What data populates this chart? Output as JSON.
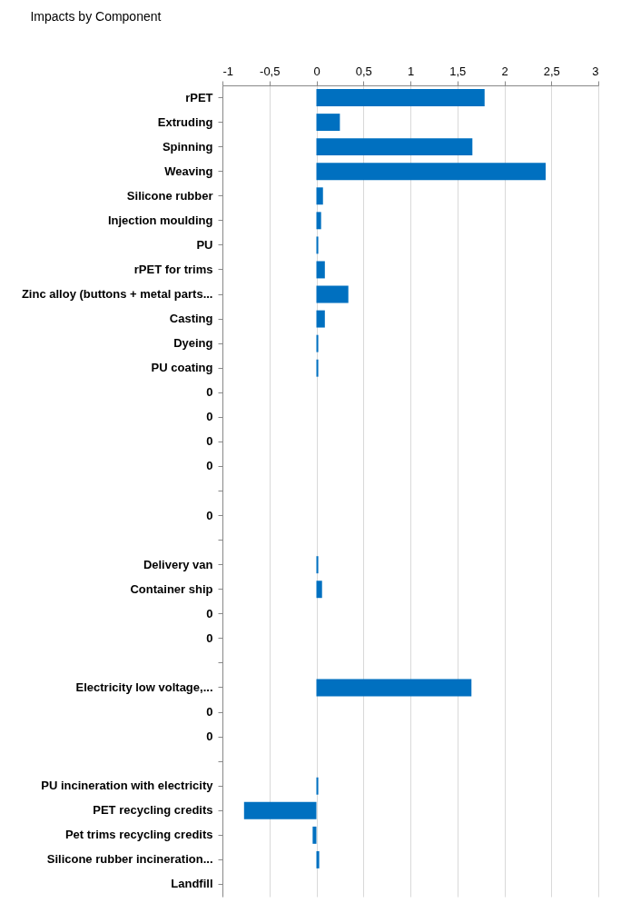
{
  "chart_data": {
    "type": "bar",
    "orientation": "horizontal",
    "title": "Impacts by Component",
    "categories": [
      "rPET",
      "Extruding",
      "Spinning",
      "Weaving",
      "Silicone rubber",
      "Injection moulding",
      "PU",
      "rPET for trims",
      "Zinc alloy (buttons + metal parts...",
      "Casting",
      "Dyeing",
      "PU coating",
      "0",
      "0",
      "0",
      "0",
      null,
      "0",
      null,
      "Delivery van",
      "Container ship",
      "0",
      "0",
      null,
      "Electricity low voltage,...",
      "0",
      "0",
      null,
      "PU incineration with electricity",
      "PET recycling credits",
      "Pet trims recycling credits",
      "Silicone rubber incineration...",
      "Landfill"
    ],
    "values": [
      1.79,
      0.25,
      1.66,
      2.44,
      0.07,
      0.05,
      0.02,
      0.09,
      0.34,
      0.09,
      0.02,
      0.02,
      0,
      0,
      0,
      0,
      null,
      0,
      null,
      0.02,
      0.06,
      0,
      0,
      null,
      1.65,
      0,
      0,
      null,
      0.02,
      -0.77,
      -0.04,
      0.03,
      0
    ],
    "color": "#0070c0",
    "xlim": [
      -1,
      3
    ],
    "xticks": [
      -1,
      {
        "value": -0.5,
        "label": "-0,5"
      },
      0,
      {
        "value": 0.5,
        "label": "0,5"
      },
      1,
      {
        "value": 1.5,
        "label": "1,5"
      },
      2,
      {
        "value": 2.5,
        "label": "2,5"
      },
      3
    ],
    "grid": "x"
  }
}
